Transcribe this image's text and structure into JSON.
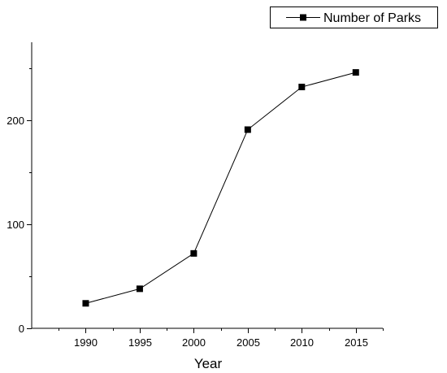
{
  "chart_data": {
    "type": "line",
    "title": "",
    "xlabel": "Year",
    "ylabel": "",
    "x": [
      1990,
      1995,
      2000,
      2005,
      2010,
      2015
    ],
    "xticks": [
      "1990",
      "1995",
      "2000",
      "2005",
      "2010",
      "2015"
    ],
    "xlim": [
      1985,
      2017.5
    ],
    "ylim": [
      0,
      275
    ],
    "yticks": [
      "0",
      "100",
      "200"
    ],
    "ytick_values": [
      0,
      100,
      200
    ],
    "yminor_values": [
      50,
      150,
      250
    ],
    "series": [
      {
        "name": "Number of Parks",
        "values": [
          24,
          38,
          72,
          191,
          232,
          246
        ],
        "color": "#000000",
        "marker": "square"
      }
    ],
    "legend_position": "top-right",
    "grid": false
  }
}
